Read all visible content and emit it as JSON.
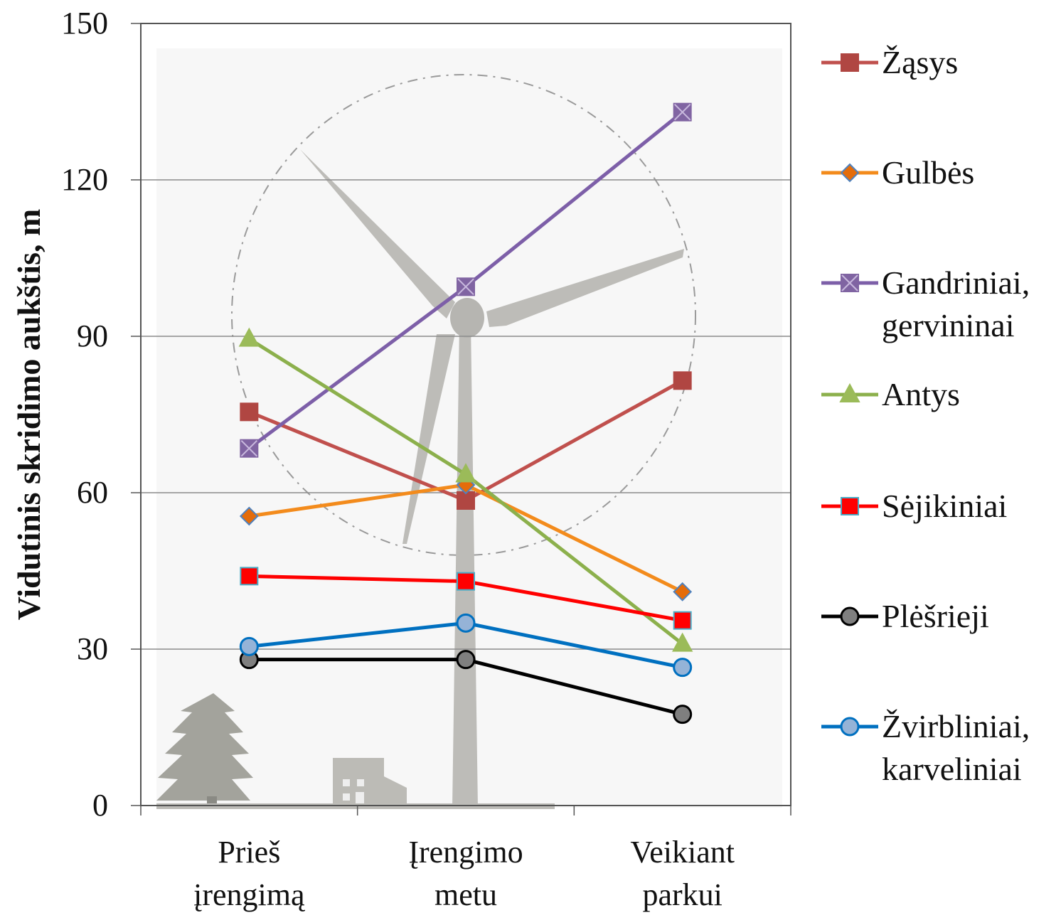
{
  "chart_data": {
    "type": "line",
    "title": "",
    "xlabel": "",
    "ylabel": "Vidutinis skridimo aukštis, m",
    "ylim": [
      0,
      150
    ],
    "yticks": [
      0,
      30,
      60,
      90,
      120,
      150
    ],
    "grid": true,
    "legend_position": "right",
    "categories": [
      [
        "Prieš",
        "įrengimą"
      ],
      [
        "Įrengimo",
        "metu"
      ],
      [
        "Veikiant",
        "parkui"
      ]
    ],
    "series": [
      {
        "name": [
          "Žąsys"
        ],
        "values": [
          75.5,
          58.5,
          81.5
        ],
        "color": "#c0504d",
        "marker": "square",
        "marker_fill": "#b04642",
        "marker_stroke": "#b04642"
      },
      {
        "name": [
          "Gulbės"
        ],
        "values": [
          55.5,
          61.5,
          41
        ],
        "color": "#f38b1c",
        "marker": "diamond",
        "marker_fill": "#e46c0a",
        "marker_stroke": "#4f81bd"
      },
      {
        "name": [
          "Gandriniai,",
          "gervininai"
        ],
        "values": [
          68.5,
          99.5,
          133
        ],
        "color": "#7d5fa8",
        "marker": "square-x",
        "marker_fill": "#8064a2",
        "marker_stroke": "#8064a2"
      },
      {
        "name": [
          "Antys"
        ],
        "values": [
          89.5,
          63.5,
          31
        ],
        "color": "#8cb04c",
        "marker": "triangle",
        "marker_fill": "#9bbb59",
        "marker_stroke": "#9bbb59"
      },
      {
        "name": [
          "Sėjikiniai"
        ],
        "values": [
          44,
          43,
          35.5
        ],
        "color": "#ff0000",
        "marker": "square",
        "marker_fill": "#ff0000",
        "marker_stroke": "#4bacc6"
      },
      {
        "name": [
          "Plėšrieji"
        ],
        "values": [
          28,
          28,
          17.5
        ],
        "color": "#000000",
        "marker": "circle",
        "marker_fill": "#7f7f7f",
        "marker_stroke": "#000000"
      },
      {
        "name": [
          "Žvirbliniai,",
          "karveliniai"
        ],
        "values": [
          30.5,
          35,
          26.5
        ],
        "color": "#0070c0",
        "marker": "circle",
        "marker_fill": "#95b3d7",
        "marker_stroke": "#0070c0"
      }
    ]
  }
}
